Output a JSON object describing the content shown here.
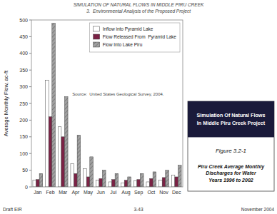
{
  "chart_data": {
    "type": "bar",
    "title": "Simulation Of Natural Flows\nIn Middle Piru Creek Project",
    "categories": [
      "Jan",
      "Feb",
      "Mar",
      "Apr",
      "May",
      "Jun",
      "Jul",
      "Aug",
      "Sep",
      "Oct",
      "Nov",
      "Dec"
    ],
    "series": [
      {
        "name": "Inflow into Pyramid Lake",
        "color": "#ffffff",
        "values": [
          20,
          320,
          180,
          70,
          55,
          20,
          15,
          12,
          18,
          15,
          20,
          35
        ]
      },
      {
        "name": "Flow Released From  Pyramid Lake",
        "color": "#7b2245",
        "values": [
          22,
          210,
          150,
          40,
          30,
          25,
          22,
          20,
          22,
          25,
          28,
          30
        ]
      },
      {
        "name": "Flow Into Lake Piru",
        "color": "#a0a0a0",
        "values": [
          40,
          490,
          270,
          155,
          90,
          50,
          40,
          30,
          40,
          45,
          50,
          65
        ]
      }
    ],
    "ylabel": "Average Monthly Flow, ac-ft",
    "ylim": [
      0,
      500
    ],
    "yticks": [
      0,
      50,
      100,
      150,
      200,
      250,
      300,
      350,
      400,
      450,
      500
    ],
    "grid": false,
    "legend": "upper right",
    "annotations": [
      "SIMULATION OF NATURAL FLOWS IN MIDDLE PIRU CREEK",
      "3.  Environmental Analysis of the Proposed Project",
      "Source:  United States Geological Survey, 2004.",
      "Figure 3.2-1",
      "Piru Creek Average Monthly\nDischarges for Water\nYears 1996 to 2002",
      "Draft EIR",
      "3-43",
      "November 2004"
    ]
  }
}
